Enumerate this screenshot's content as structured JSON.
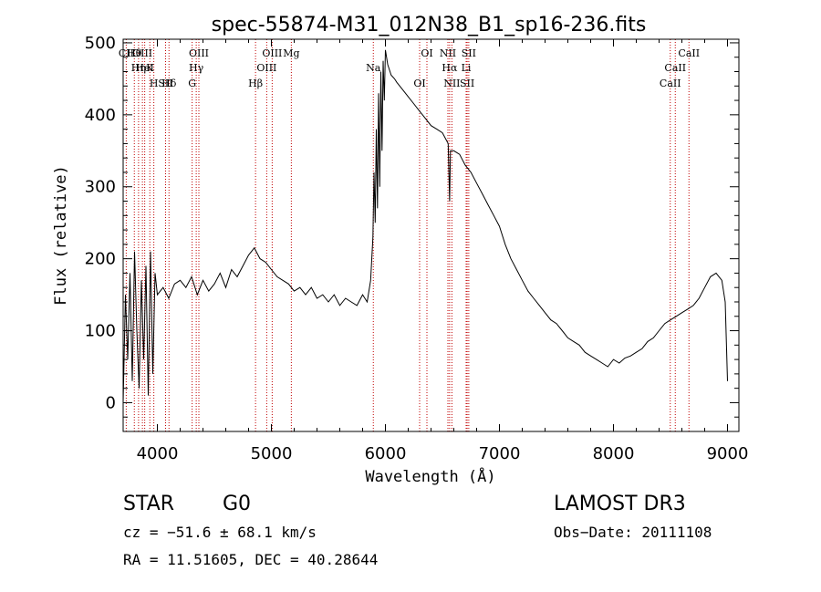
{
  "chart_data": {
    "type": "line",
    "title": "spec-55874-M31_012N38_B1_sp16-236.fits",
    "xlabel": "Wavelength (Å)",
    "ylabel": "Flux (relative)",
    "xlim": [
      3700,
      9100
    ],
    "ylim": [
      -40,
      505
    ],
    "xticks": [
      4000,
      5000,
      6000,
      7000,
      8000,
      9000
    ],
    "yticks": [
      0,
      100,
      200,
      300,
      400,
      500
    ],
    "series": [
      {
        "name": "flux",
        "x": [
          3700,
          3720,
          3740,
          3760,
          3780,
          3800,
          3820,
          3840,
          3860,
          3880,
          3900,
          3920,
          3940,
          3960,
          3980,
          4000,
          4050,
          4100,
          4150,
          4200,
          4250,
          4300,
          4350,
          4400,
          4450,
          4500,
          4550,
          4600,
          4650,
          4700,
          4750,
          4800,
          4850,
          4900,
          4950,
          5000,
          5050,
          5100,
          5150,
          5200,
          5250,
          5300,
          5350,
          5400,
          5450,
          5500,
          5550,
          5600,
          5650,
          5700,
          5750,
          5800,
          5840,
          5870,
          5890,
          5900,
          5910,
          5920,
          5930,
          5940,
          5950,
          5960,
          5970,
          5980,
          5990,
          6000,
          6020,
          6050,
          6080,
          6100,
          6150,
          6200,
          6250,
          6300,
          6350,
          6400,
          6450,
          6500,
          6550,
          6563,
          6570,
          6600,
          6650,
          6700,
          6750,
          6800,
          6850,
          6900,
          6950,
          7000,
          7050,
          7100,
          7150,
          7200,
          7250,
          7300,
          7350,
          7400,
          7450,
          7500,
          7550,
          7600,
          7650,
          7700,
          7750,
          7800,
          7850,
          7900,
          7950,
          8000,
          8050,
          8100,
          8150,
          8200,
          8250,
          8300,
          8350,
          8400,
          8450,
          8500,
          8550,
          8600,
          8650,
          8700,
          8750,
          8800,
          8850,
          8900,
          8950,
          8980,
          9000
        ],
        "y": [
          0,
          150,
          60,
          180,
          30,
          210,
          100,
          20,
          170,
          60,
          190,
          10,
          210,
          40,
          180,
          150,
          160,
          145,
          165,
          170,
          160,
          175,
          150,
          170,
          155,
          165,
          180,
          160,
          185,
          175,
          190,
          205,
          215,
          200,
          195,
          185,
          175,
          170,
          165,
          155,
          160,
          150,
          160,
          145,
          150,
          140,
          150,
          135,
          145,
          140,
          135,
          150,
          140,
          170,
          230,
          320,
          250,
          380,
          270,
          430,
          300,
          460,
          350,
          475,
          420,
          490,
          470,
          455,
          450,
          445,
          435,
          425,
          415,
          405,
          395,
          385,
          380,
          375,
          360,
          280,
          350,
          350,
          345,
          330,
          320,
          305,
          290,
          275,
          260,
          245,
          220,
          200,
          185,
          170,
          155,
          145,
          135,
          125,
          115,
          110,
          100,
          90,
          85,
          80,
          70,
          65,
          60,
          55,
          50,
          60,
          55,
          62,
          65,
          70,
          75,
          85,
          90,
          100,
          110,
          115,
          120,
          125,
          130,
          135,
          145,
          160,
          175,
          180,
          170,
          140,
          30
        ]
      }
    ],
    "lines": [
      {
        "label": "Hθ",
        "x": 3798
      },
      {
        "label": "K",
        "x": 3934
      },
      {
        "label": "Hδ",
        "x": 4102
      },
      {
        "label": "OIII",
        "x": 4364
      },
      {
        "label": "Hγ",
        "x": 4341
      },
      {
        "label": "G",
        "x": 4305
      },
      {
        "label": "CII",
        "x": 3727
      },
      {
        "label": "HeI",
        "x": 3889
      },
      {
        "label": "SII",
        "x": 4072
      },
      {
        "label": "OIII",
        "x": 3869
      },
      {
        "label": "Hη",
        "x": 3835
      },
      {
        "label": "H",
        "x": 3969
      },
      {
        "label": "OIII",
        "x": 5007
      },
      {
        "label": "OIII",
        "x": 4959
      },
      {
        "label": "Hβ",
        "x": 4861
      },
      {
        "label": "Mg",
        "x": 5175
      },
      {
        "label": "Na",
        "x": 5894
      },
      {
        "label": "OI",
        "x": 6300
      },
      {
        "label": "OI",
        "x": 6364
      },
      {
        "label": "Hα",
        "x": 6563
      },
      {
        "label": "SII",
        "x": 6717
      },
      {
        "label": "NII",
        "x": 6548
      },
      {
        "label": "Li",
        "x": 6708
      },
      {
        "label": "NII",
        "x": 6583
      },
      {
        "label": "SII",
        "x": 6731
      },
      {
        "label": "CaII",
        "x": 8542
      },
      {
        "label": "CaII",
        "x": 8498
      },
      {
        "label": "CaII",
        "x": 8662
      }
    ]
  },
  "info": {
    "classification": "STAR",
    "subclass": "G0",
    "survey": "LAMOST DR3",
    "cz": "cz = −51.6 ± 68.1 km/s",
    "obs_date": "Obs−Date: 20111108",
    "radec": "RA =  11.51605, DEC =  40.28644"
  },
  "colors": {
    "line_marker": "#c00000",
    "spectrum": "#000000"
  }
}
